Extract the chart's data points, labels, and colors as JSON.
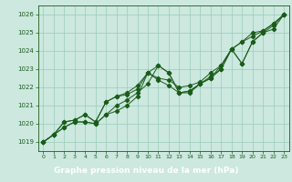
{
  "x": [
    0,
    1,
    2,
    3,
    4,
    5,
    6,
    7,
    8,
    9,
    10,
    11,
    12,
    13,
    14,
    15,
    16,
    17,
    18,
    19,
    20,
    21,
    22,
    23
  ],
  "line1": [
    1019.0,
    1019.4,
    1019.8,
    1020.1,
    1020.1,
    1020.0,
    1020.5,
    1021.0,
    1021.3,
    1021.7,
    1022.2,
    1023.2,
    1022.8,
    1021.7,
    1021.8,
    1022.2,
    1022.5,
    1023.0,
    1024.1,
    1023.3,
    1024.5,
    1025.0,
    1025.2,
    1026.0
  ],
  "line2": [
    1019.0,
    1019.4,
    1020.1,
    1020.2,
    1020.5,
    1020.1,
    1021.2,
    1021.5,
    1021.7,
    1022.1,
    1022.8,
    1022.5,
    1022.4,
    1022.0,
    1022.1,
    1022.3,
    1022.8,
    1023.2,
    1024.1,
    1024.5,
    1024.8,
    1025.1,
    1025.5,
    1026.0
  ],
  "line3": [
    1019.0,
    1019.4,
    1020.1,
    1020.2,
    1020.5,
    1020.1,
    1021.2,
    1021.5,
    1021.6,
    1021.9,
    1022.8,
    1022.4,
    1022.1,
    1021.7,
    1021.7,
    1022.2,
    1022.6,
    1023.0,
    1024.1,
    1024.5,
    1025.0,
    1025.1,
    1025.5,
    1026.0
  ],
  "line4": [
    1019.0,
    1019.4,
    1019.8,
    1020.1,
    1020.1,
    1020.0,
    1020.5,
    1020.7,
    1021.0,
    1021.5,
    1022.8,
    1023.2,
    1022.8,
    1021.7,
    1021.8,
    1022.2,
    1022.5,
    1023.2,
    1024.1,
    1023.3,
    1024.5,
    1025.0,
    1025.4,
    1026.0
  ],
  "line_color": "#1a5c1a",
  "bg_color": "#cce8df",
  "grid_color": "#99ccbb",
  "xlabel": "Graphe pression niveau de la mer (hPa)",
  "xlabel_bg": "#1a5c1a",
  "xlabel_fg": "#ffffff",
  "ylim": [
    1018.5,
    1026.5
  ],
  "xlim": [
    -0.5,
    23.5
  ],
  "yticks": [
    1019,
    1020,
    1021,
    1022,
    1023,
    1024,
    1025,
    1026
  ],
  "xticks": [
    0,
    1,
    2,
    3,
    4,
    5,
    6,
    7,
    8,
    9,
    10,
    11,
    12,
    13,
    14,
    15,
    16,
    17,
    18,
    19,
    20,
    21,
    22,
    23
  ]
}
